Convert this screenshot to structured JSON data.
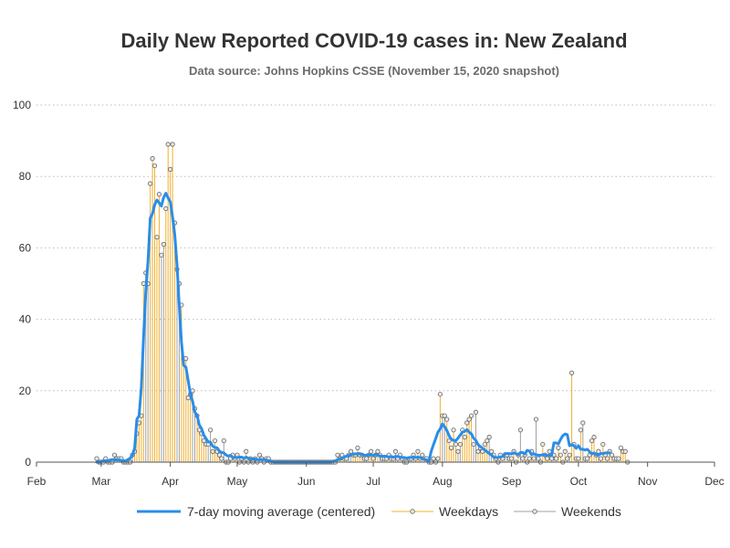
{
  "chart_data": {
    "type": "bar",
    "title": "Daily New Reported COVID-19 cases in: New Zealand",
    "subtitle": "Data source: Johns Hopkins CSSE (November 15, 2020 snapshot)",
    "xlabel": "",
    "ylabel": "",
    "ylim": [
      0,
      100
    ],
    "yticks": [
      0,
      20,
      40,
      60,
      80,
      100
    ],
    "xlim": [
      "2020-02-01",
      "2020-12-01"
    ],
    "xticks": [
      {
        "date": "2020-02-01",
        "label": "Feb"
      },
      {
        "date": "2020-03-01",
        "label": "Mar"
      },
      {
        "date": "2020-04-01",
        "label": "Apr"
      },
      {
        "date": "2020-05-01",
        "label": "May"
      },
      {
        "date": "2020-06-01",
        "label": "Jun"
      },
      {
        "date": "2020-07-01",
        "label": "Jul"
      },
      {
        "date": "2020-08-01",
        "label": "Aug"
      },
      {
        "date": "2020-09-01",
        "label": "Sep"
      },
      {
        "date": "2020-10-01",
        "label": "Oct"
      },
      {
        "date": "2020-11-01",
        "label": "Nov"
      },
      {
        "date": "2020-12-01",
        "label": "Dec"
      }
    ],
    "grid": "horizontal dotted",
    "legend_position": "bottom",
    "legend": [
      {
        "label": "7-day moving average (centered)",
        "kind": "line"
      },
      {
        "label": "Weekdays",
        "kind": "weekday"
      },
      {
        "label": "Weekends",
        "kind": "weekend"
      }
    ],
    "colors": {
      "moving_average": "#2a8de8",
      "weekdays": "#f0b030",
      "weekends": "#a0a0a0",
      "marker_fill": "#e8e8e8",
      "marker_stroke": "#666666",
      "grid": "#bbbbbb",
      "axis": "#555555"
    },
    "daily_start": "2020-02-28",
    "daily_values": [
      1,
      0,
      0,
      0,
      1,
      0,
      0,
      0,
      2,
      1,
      1,
      1,
      0,
      0,
      0,
      0,
      2,
      3,
      8,
      11,
      13,
      50,
      53,
      50,
      78,
      85,
      83,
      63,
      75,
      58,
      61,
      71,
      89,
      82,
      89,
      67,
      54,
      50,
      44,
      29,
      29,
      18,
      19,
      20,
      15,
      13,
      9,
      8,
      6,
      5,
      5,
      9,
      3,
      6,
      3,
      2,
      1,
      6,
      0,
      0,
      1,
      2,
      1,
      2,
      0,
      1,
      0,
      3,
      0,
      1,
      0,
      1,
      0,
      2,
      1,
      0,
      1,
      1,
      0,
      0,
      0,
      0,
      0,
      0,
      0,
      0,
      0,
      0,
      0,
      0,
      0,
      0,
      0,
      0,
      0,
      0,
      0,
      0,
      0,
      0,
      0,
      0,
      0,
      0,
      0,
      0,
      0,
      0,
      2,
      1,
      2,
      1,
      1,
      2,
      3,
      2,
      2,
      4,
      2,
      2,
      1,
      1,
      2,
      3,
      1,
      2,
      3,
      2,
      1,
      1,
      1,
      2,
      1,
      1,
      3,
      1,
      2,
      1,
      0,
      0,
      1,
      1,
      2,
      1,
      3,
      1,
      2,
      1,
      1,
      0,
      0,
      1,
      0,
      1,
      19,
      13,
      13,
      12,
      6,
      4,
      9,
      5,
      3,
      5,
      9,
      7,
      11,
      12,
      13,
      5,
      14,
      3,
      4,
      3,
      5,
      6,
      7,
      3,
      2,
      1,
      0,
      2,
      1,
      2,
      2,
      1,
      1,
      3,
      0,
      2,
      9,
      1,
      2,
      0,
      1,
      3,
      1,
      12,
      1,
      0,
      5,
      2,
      1,
      3,
      1,
      2,
      1,
      4,
      2,
      0,
      3,
      1,
      2,
      25,
      5,
      1,
      1,
      9,
      11,
      1,
      1,
      2,
      6,
      7,
      2,
      3,
      1,
      5,
      2,
      1,
      3,
      2,
      1,
      1,
      1,
      4,
      3,
      3,
      0
    ],
    "moving_average_start": "2020-02-28",
    "moving_average": [
      0,
      0,
      0.3,
      0.4,
      0.4,
      0.4,
      0.6,
      0.7,
      0.7,
      0.6,
      0.6,
      0.5,
      0.4,
      0.4,
      0.7,
      1.1,
      2,
      3.9,
      12,
      13,
      20.9,
      35,
      47.7,
      56.3,
      68.3,
      69.6,
      72.1,
      73.4,
      72.6,
      71.7,
      74.1,
      75.3,
      74,
      72.9,
      68.7,
      63.7,
      55.3,
      43.9,
      33.6,
      27.1,
      26.6,
      22.9,
      19,
      17,
      14,
      13.1,
      10.4,
      9.4,
      7.6,
      6.6,
      5.7,
      5.6,
      4.5,
      4.1,
      4,
      3.1,
      2.7,
      2.6,
      2,
      1.7,
      1.9,
      1.3,
      1.3,
      1.3,
      1.4,
      1.4,
      1.1,
      1.4,
      1.1,
      0.9,
      0.9,
      0.9,
      0.7,
      0.7,
      0.7,
      0.7,
      0.6,
      0.4,
      0.4,
      0.1,
      0,
      0,
      0,
      0,
      0,
      0,
      0,
      0,
      0,
      0,
      0,
      0,
      0,
      0,
      0,
      0,
      0,
      0,
      0,
      0,
      0,
      0,
      0,
      0,
      0,
      0,
      0.3,
      0.4,
      0.7,
      0.9,
      1.1,
      1.4,
      1.7,
      1.9,
      2,
      2.3,
      2.3,
      2.4,
      2.4,
      2.1,
      1.9,
      2,
      2,
      2,
      1.9,
      2.1,
      2,
      1.7,
      1.6,
      1.7,
      1.6,
      1.4,
      1.6,
      1.4,
      1.6,
      1.6,
      1.4,
      1.3,
      1.3,
      1.1,
      1.3,
      1.3,
      1.4,
      1.3,
      1.4,
      1.3,
      1,
      0.7,
      0.6,
      0.4,
      3.1,
      4.9,
      6.6,
      8.4,
      9.3,
      10.7,
      9.9,
      8.9,
      7.4,
      6.4,
      6.1,
      6,
      6.7,
      7.6,
      8.4,
      8.6,
      9.1,
      8.4,
      7.9,
      6.7,
      6.1,
      4.9,
      4.4,
      3.9,
      3.4,
      2.9,
      2.4,
      2,
      1.4,
      1.3,
      1.3,
      1.4,
      1.6,
      2.4,
      2.4,
      2.4,
      2.3,
      2.6,
      2.4,
      2.1,
      2.7,
      2.7,
      2.3,
      3.3,
      3.1,
      2.1,
      2.4,
      2,
      2,
      1.9,
      2.1,
      2,
      1.9,
      1.9,
      2,
      5.4,
      5.4,
      5.1,
      6.4,
      7.4,
      7.9,
      7.7,
      4.6,
      4.9,
      4.6,
      3.9,
      4.6,
      3.6,
      3.6,
      3.4,
      3.6,
      2.9,
      2.3,
      2.6,
      2.1,
      2,
      2.4,
      2.4,
      2.6,
      2.6,
      2.6
    ]
  }
}
